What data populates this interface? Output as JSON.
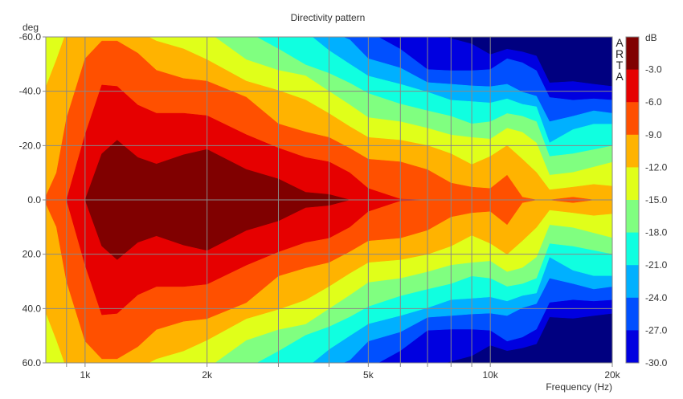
{
  "chart_data": {
    "type": "heatmap",
    "subtype": "filled-contour",
    "title": "Directivity pattern",
    "xlabel": "Frequency (Hz)",
    "ylabel": "deg",
    "xscale": "log",
    "xlim": [
      800,
      20000
    ],
    "ylim": [
      -60,
      60
    ],
    "x_ticks": [
      {
        "value": 1000,
        "label": "1k"
      },
      {
        "value": 2000,
        "label": "2k"
      },
      {
        "value": 5000,
        "label": "5k"
      },
      {
        "value": 10000,
        "label": "10k"
      },
      {
        "value": 20000,
        "label": "20k"
      }
    ],
    "x_gridlines": [
      900,
      1000,
      2000,
      3000,
      4000,
      5000,
      6000,
      7000,
      8000,
      9000,
      10000,
      20000
    ],
    "y_ticks": [
      {
        "value": -60,
        "label": "-60.0"
      },
      {
        "value": -40,
        "label": "-40.0"
      },
      {
        "value": -20,
        "label": "-20.0"
      },
      {
        "value": 0,
        "label": "0.0"
      },
      {
        "value": 20,
        "label": "20.0"
      },
      {
        "value": 40,
        "label": "40.0"
      },
      {
        "value": 60,
        "label": "60.0"
      }
    ],
    "grid": true,
    "watermark": "ARTA",
    "colorbar": {
      "unit": "dB",
      "position": "right",
      "labels": [
        "-3.0",
        "-6.0",
        "-9.0",
        "-12.0",
        "-15.0",
        "-18.0",
        "-21.0",
        "-24.0",
        "-27.0",
        "-30.0"
      ],
      "segment_colors": [
        "#800000",
        "#e60000",
        "#ff5000",
        "#ffb300",
        "#e0ff1a",
        "#80ff80",
        "#10ffe0",
        "#00b0ff",
        "#0050ff",
        "#0000e0"
      ]
    },
    "below_min_color": "#000080",
    "frequencies": [
      800,
      850,
      900,
      1000,
      1100,
      1200,
      1350,
      1500,
      1750,
      2000,
      2500,
      3000,
      3500,
      4000,
      4500,
      5000,
      6000,
      7000,
      8000,
      9000,
      10000,
      11000,
      12000,
      13000,
      14000,
      16000,
      18000,
      20000
    ],
    "levels_note": "half-angle (deg) within which level >= threshold; pattern symmetric about 0 deg",
    "levels": [
      {
        "threshold": -30,
        "color": "#0000e0",
        "half_angle": [
          60,
          60,
          60,
          60,
          60,
          60,
          60,
          60,
          60,
          60,
          60,
          60,
          60,
          60,
          60,
          60,
          60,
          60,
          59.4,
          57.4,
          53.5,
          55.5,
          54.5,
          53,
          43.1,
          43.6,
          42.6,
          41.7
        ]
      },
      {
        "threshold": -27,
        "color": "#0050ff",
        "half_angle": [
          60,
          60,
          60,
          60,
          60,
          60,
          60,
          60,
          60,
          60,
          60,
          60,
          60,
          60,
          60,
          60,
          55.5,
          48,
          47.6,
          47.6,
          48,
          52,
          50.5,
          47.6,
          37.7,
          36.7,
          37.2,
          36.7
        ]
      },
      {
        "threshold": -24,
        "color": "#00b0ff",
        "half_angle": [
          60,
          60,
          60,
          60,
          60,
          60,
          60,
          60,
          60,
          60,
          60,
          60,
          60,
          60,
          59,
          52,
          48.6,
          43.2,
          42.6,
          42,
          41.7,
          42.6,
          39.7,
          38.2,
          28.8,
          30.8,
          32.8,
          31.8
        ]
      },
      {
        "threshold": -21,
        "color": "#10ffe0",
        "half_angle": [
          60,
          60,
          60,
          60,
          60,
          60,
          60,
          60,
          60,
          60,
          60,
          60,
          60,
          55,
          50,
          45.6,
          42.6,
          39.7,
          36.7,
          36.2,
          35.7,
          37.2,
          35.2,
          34.3,
          21,
          25.9,
          27.9,
          27.9
        ]
      },
      {
        "threshold": -18,
        "color": "#80ff80",
        "half_angle": [
          60,
          60,
          60,
          60,
          60,
          60,
          60,
          60,
          60,
          60,
          60,
          55.6,
          49.7,
          46.6,
          43,
          39.2,
          35.3,
          32.8,
          30.8,
          28,
          28.8,
          31.8,
          30.8,
          28.8,
          16,
          17,
          18.5,
          20
        ]
      },
      {
        "threshold": -15,
        "color": "#e0ff1a",
        "half_angle": [
          60,
          60,
          60,
          60,
          60,
          60,
          60,
          60,
          60,
          60,
          51.6,
          47.7,
          45.7,
          40,
          35,
          30.3,
          28.8,
          26.4,
          23.9,
          23,
          22.4,
          26.4,
          24.9,
          21,
          9.1,
          10.1,
          12.1,
          14
        ]
      },
      {
        "threshold": -12,
        "color": "#ffb300",
        "half_angle": [
          40,
          51.6,
          60,
          60,
          60,
          60,
          60,
          58.5,
          55.6,
          51.6,
          43.7,
          40.3,
          36.8,
          31.8,
          27,
          23,
          22,
          20,
          17,
          13,
          16,
          20,
          15,
          10.1,
          3.7,
          4.7,
          5.7,
          5
        ]
      },
      {
        "threshold": -9,
        "color": "#ff5000",
        "half_angle": [
          0,
          10,
          30,
          52,
          58.5,
          58.5,
          54,
          47.7,
          44.7,
          43.7,
          37.8,
          28,
          25,
          23,
          19,
          15,
          14,
          11.1,
          6.2,
          4.7,
          4.2,
          9.1,
          1,
          0,
          0,
          1,
          0,
          0
        ]
      },
      {
        "threshold": -6,
        "color": "#e60000",
        "half_angle": [
          0,
          0,
          0,
          24,
          42.3,
          41.8,
          34.9,
          31.9,
          31.9,
          31,
          24,
          19.1,
          15.6,
          14,
          10,
          4.2,
          0.3,
          0,
          0,
          0,
          0,
          0,
          0,
          0,
          0,
          0,
          0,
          0
        ]
      },
      {
        "threshold": -3,
        "color": "#800000",
        "half_angle": [
          0,
          0,
          0,
          0,
          17,
          22,
          15.6,
          13.2,
          16.6,
          18.6,
          11.2,
          7.7,
          2.8,
          2,
          0,
          0,
          0,
          0,
          0,
          0,
          0,
          0,
          0,
          0,
          0,
          0,
          0,
          0
        ]
      }
    ]
  }
}
